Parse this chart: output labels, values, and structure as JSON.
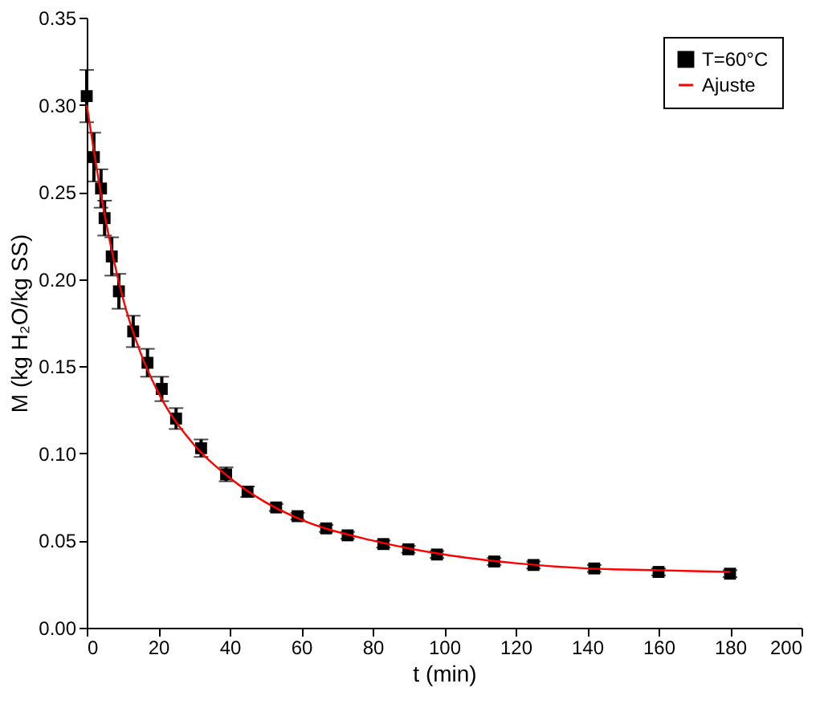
{
  "chart_data": {
    "type": "scatter",
    "xlabel": "t (min)",
    "ylabel": "M (kg H₂O/kg SS)",
    "xlim": [
      0,
      200
    ],
    "xticks": [
      0,
      20,
      40,
      60,
      80,
      100,
      120,
      140,
      160,
      180,
      200
    ],
    "ylim": [
      0,
      0.35
    ],
    "yticks": [
      {
        "value": 0,
        "label": "0.00"
      },
      {
        "value": 0.05,
        "label": "0.05"
      },
      {
        "value": 0.1,
        "label": "0.10"
      },
      {
        "value": 0.15,
        "label": "0.15"
      },
      {
        "value": 0.2,
        "label": "0.20"
      },
      {
        "value": 0.25,
        "label": "0.25"
      },
      {
        "value": 0.3,
        "label": "0.30"
      },
      {
        "value": 0.35,
        "label": "0.35"
      }
    ],
    "grid": false,
    "legend": "top right",
    "series": [
      {
        "name": "T=60°C",
        "marker": "square",
        "color": "#000000",
        "x": [
          0,
          2,
          4,
          5,
          7,
          9,
          13,
          17,
          21,
          25,
          32,
          39,
          45,
          53,
          59,
          67,
          73,
          83,
          90,
          98,
          114,
          125,
          142,
          160,
          180
        ],
        "values": [
          0.305,
          0.27,
          0.252,
          0.235,
          0.213,
          0.193,
          0.17,
          0.152,
          0.137,
          0.12,
          0.103,
          0.088,
          0.078,
          0.069,
          0.064,
          0.057,
          0.053,
          0.048,
          0.045,
          0.042,
          0.038,
          0.036,
          0.034,
          0.032,
          0.031
        ],
        "errors": [
          0.015,
          0.014,
          0.011,
          0.01,
          0.011,
          0.01,
          0.009,
          0.008,
          0.007,
          0.006,
          0.005,
          0.004,
          0.003,
          0.002,
          0.002,
          0.002,
          0.002,
          0.002,
          0.002,
          0.002,
          0.002,
          0.002,
          0.002,
          0.002,
          0.002
        ]
      },
      {
        "name": "Ajuste",
        "type": "line",
        "marker": "none",
        "line_style": "solid",
        "color": "#ff0000",
        "x": [
          0,
          5,
          10,
          15,
          20,
          30,
          40,
          50,
          60,
          80,
          100,
          120,
          140,
          160,
          180
        ],
        "values": [
          0.3,
          0.237,
          0.19,
          0.158,
          0.135,
          0.105,
          0.086,
          0.072,
          0.062,
          0.05,
          0.042,
          0.037,
          0.034,
          0.033,
          0.032
        ]
      }
    ]
  }
}
